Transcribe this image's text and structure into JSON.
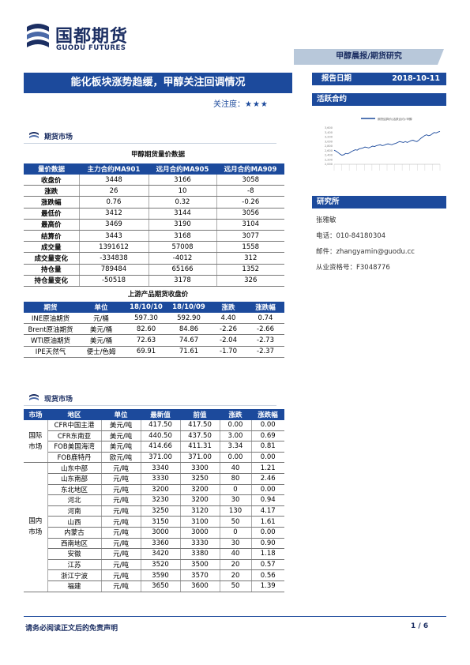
{
  "brand": {
    "name_cn": "国都期货",
    "name_en": "GUODU FUTURES",
    "color": "#1c2f63"
  },
  "header": {
    "band_label": "甲醇晨报/期货研究",
    "title": "能化板块涨势趋缓，甲醇关注回调情况",
    "attention_label": "关注度：",
    "attention_stars": "★★★",
    "report_date_label": "报告日期",
    "report_date": "2018-10-11",
    "active_contract_label": "活跃合约"
  },
  "futures_section": {
    "header": "期货市场",
    "table_caption": "甲醇期货量价数据",
    "columns": [
      "量价数据",
      "主力合约MA901",
      "远月合约MA905",
      "远月合约MA909"
    ],
    "rows": [
      [
        "收盘价",
        "3448",
        "3166",
        "3058"
      ],
      [
        "涨跌",
        "26",
        "10",
        "-8"
      ],
      [
        "涨跌幅",
        "0.76",
        "0.32",
        "-0.26"
      ],
      [
        "最低价",
        "3412",
        "3144",
        "3056"
      ],
      [
        "最高价",
        "3469",
        "3190",
        "3104"
      ],
      [
        "结算价",
        "3443",
        "3168",
        "3077"
      ],
      [
        "成交量",
        "1391612",
        "57008",
        "1558"
      ],
      [
        "成交量变化",
        "-334838",
        "-4012",
        "312"
      ],
      [
        "持仓量",
        "789484",
        "65166",
        "1352"
      ],
      [
        "持仓量变化",
        "-50518",
        "3178",
        "326"
      ]
    ],
    "upstream_caption": "上游产品期货收盘价",
    "upstream_columns": [
      "期货",
      "单位",
      "18/10/10",
      "18/10/09",
      "涨跌",
      "涨跌幅"
    ],
    "upstream_rows": [
      [
        "INE原油期货",
        "元/桶",
        "597.30",
        "592.90",
        "4.40",
        "0.74"
      ],
      [
        "Brent原油期货",
        "美元/桶",
        "82.60",
        "84.86",
        "-2.26",
        "-2.66"
      ],
      [
        "WTI原油期货",
        "美元/桶",
        "72.63",
        "74.67",
        "-2.04",
        "-2.73"
      ],
      [
        "IPE天然气",
        "便士/色姆",
        "69.91",
        "71.61",
        "-1.70",
        "-2.37"
      ]
    ]
  },
  "spot_section": {
    "header": "现货市场",
    "columns": [
      "市场",
      "地区",
      "单位",
      "最新值",
      "前值",
      "涨跌",
      "涨跌幅"
    ],
    "intl_label": "国际市场",
    "intl_rows": [
      [
        "CFR中国主港",
        "美元/吨",
        "417.50",
        "417.50",
        "0.00",
        "0.00"
      ],
      [
        "CFR东南亚",
        "美元/吨",
        "440.50",
        "437.50",
        "3.00",
        "0.69"
      ],
      [
        "FOB美国海湾",
        "美元/吨",
        "414.66",
        "411.31",
        "3.34",
        "0.81"
      ],
      [
        "FOB鹿特丹",
        "欧元/吨",
        "371.00",
        "371.00",
        "0.00",
        "0.00"
      ]
    ],
    "domestic_label": "国内市场",
    "domestic_rows": [
      [
        "山东中部",
        "元/吨",
        "3340",
        "3300",
        "40",
        "1.21"
      ],
      [
        "山东南部",
        "元/吨",
        "3330",
        "3250",
        "80",
        "2.46"
      ],
      [
        "东北地区",
        "元/吨",
        "3200",
        "3200",
        "0",
        "0.00"
      ],
      [
        "河北",
        "元/吨",
        "3230",
        "3200",
        "30",
        "0.94"
      ],
      [
        "河南",
        "元/吨",
        "3250",
        "3120",
        "130",
        "4.17"
      ],
      [
        "山西",
        "元/吨",
        "3150",
        "3100",
        "50",
        "1.61"
      ],
      [
        "内蒙古",
        "元/吨",
        "3000",
        "3000",
        "0",
        "0.00"
      ],
      [
        "西南地区",
        "元/吨",
        "3360",
        "3330",
        "30",
        "0.90"
      ],
      [
        "安徽",
        "元/吨",
        "3420",
        "3380",
        "40",
        "1.18"
      ],
      [
        "江苏",
        "元/吨",
        "3520",
        "3500",
        "20",
        "0.57"
      ],
      [
        "浙江宁波",
        "元/吨",
        "3590",
        "3570",
        "20",
        "0.56"
      ],
      [
        "福建",
        "元/吨",
        "3650",
        "3600",
        "50",
        "1.39"
      ]
    ]
  },
  "chart_data": {
    "type": "line",
    "legend": "期货结算价(活跃合约):甲醇",
    "yticks": [
      "3,600",
      "3,400",
      "3,200",
      "3,000",
      "2,800",
      "2,600",
      "2,400",
      "2,200",
      "2,000"
    ],
    "ylim": [
      2000,
      3600
    ],
    "values": [
      2620,
      2580,
      2520,
      2450,
      2400,
      2420,
      2480,
      2460,
      2500,
      2560,
      2600,
      2640,
      2620,
      2680,
      2700,
      2720,
      2760,
      2740,
      2720,
      2760,
      2800,
      2780,
      2820,
      2840,
      2860,
      2820,
      2840,
      2880,
      2900,
      2880,
      2860,
      2900,
      2920,
      2960,
      3000,
      2980,
      2960,
      3000,
      2960,
      3000,
      3040,
      3060,
      3020,
      3000,
      3060,
      3140,
      3200,
      3260,
      3300,
      3260,
      3280,
      3340,
      3400,
      3380,
      3420,
      3448
    ]
  },
  "research": {
    "header": "研究所",
    "analyst": "张雅敏",
    "phone": "电话：010-84180304",
    "email": "邮件：zhangyamin@guodu.cc",
    "license": "从业资格号：F3048776"
  },
  "footer": {
    "disclaimer": "请务必阅读正文后的免责声明",
    "page": "1 / 6"
  }
}
